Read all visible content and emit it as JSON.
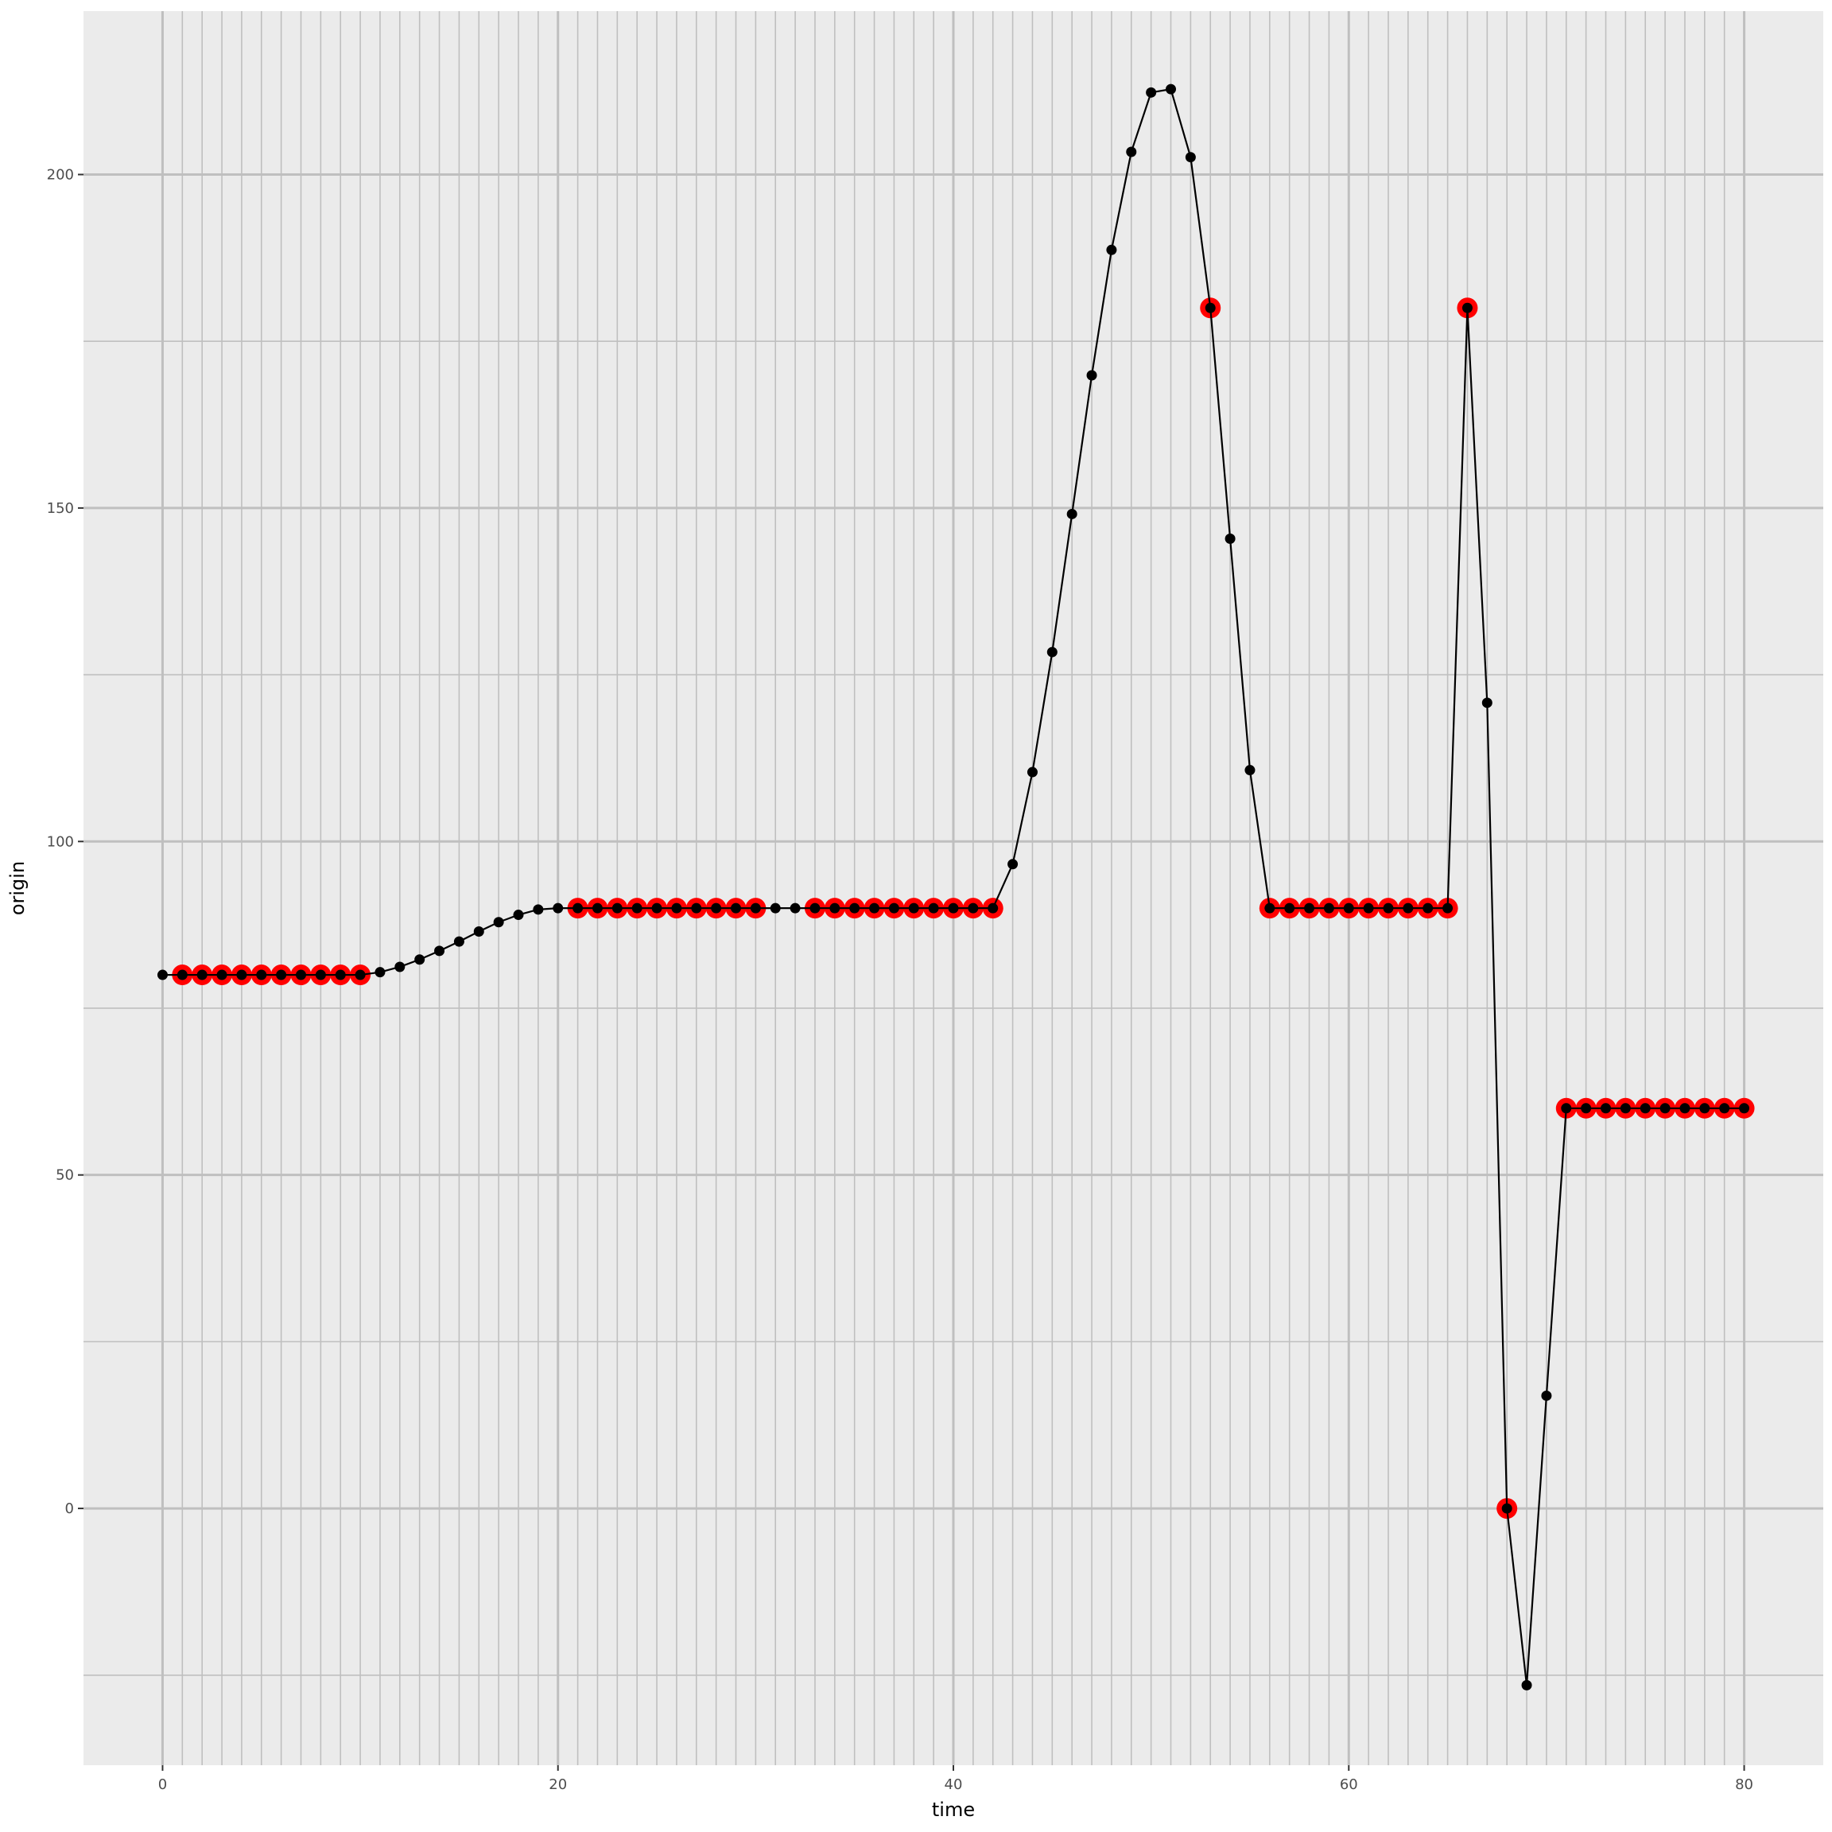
{
  "chart_data": {
    "type": "line",
    "title": "",
    "xlabel": "time",
    "ylabel": "origin",
    "xlim": [
      -4,
      84
    ],
    "ylim": [
      -38.5,
      224.5
    ],
    "x_ticks": [
      0,
      20,
      40,
      60,
      80
    ],
    "y_ticks": [
      0,
      50,
      100,
      150,
      200
    ],
    "x_minor_grid": [
      0,
      1,
      2,
      3,
      4,
      5,
      6,
      7,
      8,
      9,
      10,
      11,
      12,
      13,
      14,
      15,
      16,
      17,
      18,
      19,
      20,
      21,
      22,
      23,
      24,
      25,
      26,
      27,
      28,
      29,
      30,
      31,
      32,
      33,
      34,
      35,
      36,
      37,
      38,
      39,
      40,
      41,
      42,
      43,
      44,
      45,
      46,
      47,
      48,
      49,
      50,
      51,
      52,
      53,
      54,
      55,
      56,
      57,
      58,
      59,
      60,
      61,
      62,
      63,
      64,
      65,
      66,
      67,
      68,
      69,
      70,
      71,
      72,
      73,
      74,
      75,
      76,
      77,
      78,
      79,
      80
    ],
    "y_minor_grid": [
      -25,
      25,
      75,
      125,
      175
    ],
    "background": "#ebebeb",
    "grid_color": "#bfbfbf",
    "line_color": "#000000",
    "highlight_color": "#ff0000",
    "series": [
      {
        "name": "origin",
        "x": [
          0,
          1,
          2,
          3,
          4,
          5,
          6,
          7,
          8,
          9,
          10,
          11,
          12,
          13,
          14,
          15,
          16,
          17,
          18,
          19,
          20,
          21,
          22,
          23,
          24,
          25,
          26,
          27,
          28,
          29,
          30,
          31,
          32,
          33,
          34,
          35,
          36,
          37,
          38,
          39,
          40,
          41,
          42,
          43,
          44,
          45,
          46,
          47,
          48,
          49,
          50,
          51,
          52,
          53,
          54,
          55,
          56,
          57,
          58,
          59,
          60,
          61,
          62,
          63,
          64,
          65,
          66,
          67,
          68,
          69,
          70,
          71,
          72,
          73,
          74,
          75,
          76,
          77,
          78,
          79,
          80
        ],
        "values": [
          80,
          80,
          80,
          80,
          80,
          80,
          80,
          80,
          80,
          80,
          80,
          80.4,
          81.2,
          82.3,
          83.6,
          85.0,
          86.5,
          87.9,
          89.0,
          89.8,
          90.0,
          90,
          90,
          90,
          90,
          90,
          90,
          90,
          90,
          90,
          90,
          90,
          90,
          90,
          90,
          90,
          90,
          90,
          90,
          90,
          90,
          90,
          90,
          96.6,
          110.4,
          128.4,
          149.1,
          169.9,
          188.7,
          203.4,
          212.3,
          212.8,
          202.6,
          180,
          145.4,
          110.7,
          90,
          90,
          90,
          90,
          90,
          90,
          90,
          90,
          90,
          90,
          180,
          120.8,
          0,
          -26.5,
          16.9,
          60,
          60,
          60,
          60,
          60,
          60,
          60,
          60,
          60,
          60
        ]
      }
    ],
    "highlighted_x": [
      1,
      2,
      3,
      4,
      5,
      6,
      7,
      8,
      9,
      10,
      21,
      22,
      23,
      24,
      25,
      26,
      27,
      28,
      29,
      30,
      33,
      34,
      35,
      36,
      37,
      38,
      39,
      40,
      41,
      42,
      53,
      56,
      57,
      58,
      59,
      60,
      61,
      62,
      63,
      64,
      65,
      66,
      68,
      71,
      72,
      73,
      74,
      75,
      76,
      77,
      78,
      79,
      80
    ]
  }
}
